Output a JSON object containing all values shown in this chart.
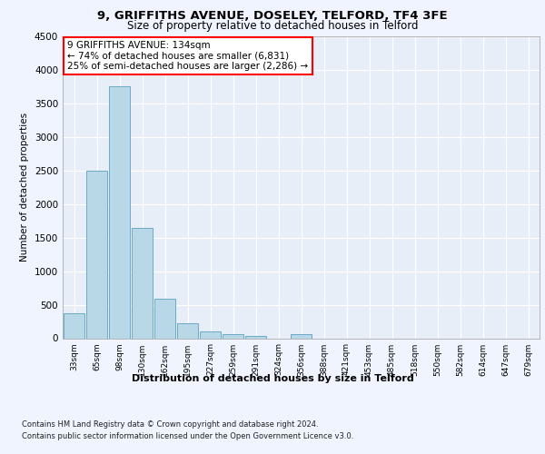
{
  "title1": "9, GRIFFITHS AVENUE, DOSELEY, TELFORD, TF4 3FE",
  "title2": "Size of property relative to detached houses in Telford",
  "xlabel": "Distribution of detached houses by size in Telford",
  "ylabel": "Number of detached properties",
  "footnote1": "Contains HM Land Registry data © Crown copyright and database right 2024.",
  "footnote2": "Contains public sector information licensed under the Open Government Licence v3.0.",
  "annotation_title": "9 GRIFFITHS AVENUE: 134sqm",
  "annotation_line1": "← 74% of detached houses are smaller (6,831)",
  "annotation_line2": "25% of semi-detached houses are larger (2,286) →",
  "bar_color": "#b8d8e8",
  "bar_edge_color": "#6aaac8",
  "categories": [
    "33sqm",
    "65sqm",
    "98sqm",
    "130sqm",
    "162sqm",
    "195sqm",
    "227sqm",
    "259sqm",
    "291sqm",
    "324sqm",
    "356sqm",
    "388sqm",
    "421sqm",
    "453sqm",
    "485sqm",
    "518sqm",
    "550sqm",
    "582sqm",
    "614sqm",
    "647sqm",
    "679sqm"
  ],
  "values": [
    370,
    2500,
    3750,
    1640,
    590,
    220,
    100,
    60,
    40,
    0,
    55,
    0,
    0,
    0,
    0,
    0,
    0,
    0,
    0,
    0,
    0
  ],
  "ylim": [
    0,
    4500
  ],
  "yticks": [
    0,
    500,
    1000,
    1500,
    2000,
    2500,
    3000,
    3500,
    4000,
    4500
  ],
  "annotation_bar_index": 3,
  "background_color": "#f0f4ff",
  "plot_bg_color": "#e8eef8"
}
